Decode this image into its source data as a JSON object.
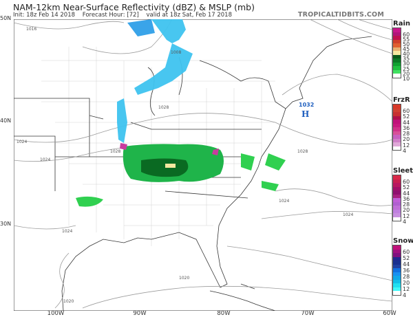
{
  "header": {
    "title": "NAM-12km Near-Surface Reflectivity (dBZ) & MSLP (mb)",
    "init": "Init: 18z Feb 14 2018",
    "forecast_hour": "Forecast Hour: [72]",
    "valid": "valid at 18z Sat, Feb 17 2018",
    "brand": "TROPICALTIDBITS.COM"
  },
  "axes": {
    "lat_labels": [
      "50N",
      "40N",
      "30N"
    ],
    "lon_labels": [
      "100W",
      "90W",
      "80W",
      "70W",
      "60W"
    ]
  },
  "isobars": {
    "labels": [
      "1016",
      "1008",
      "1028",
      "1024",
      "1024",
      "1028",
      "1028",
      "1024",
      "1024",
      "1024",
      "1020",
      "1020"
    ],
    "high_center": {
      "value": "1032",
      "symbol": "H",
      "color": "#1f5fbf"
    }
  },
  "legends": [
    {
      "title": "Rain",
      "labels": [
        "60",
        "55",
        "50",
        "45",
        "40",
        "35",
        "30",
        "25",
        "20",
        "10"
      ],
      "colors": [
        "#c8168a",
        "#b0157a",
        "#c01050",
        "#d0402a",
        "#e06030",
        "#e8b070",
        "#f5e8a0",
        "#0a5a1a",
        "#0b7a25",
        "#10a030",
        "#20c040",
        "#40e060",
        "#ffffff"
      ]
    },
    {
      "title": "FrzR",
      "labels": [
        "60",
        "52",
        "44",
        "36",
        "28",
        "20",
        "12",
        "4"
      ],
      "colors": [
        "#d83828",
        "#d04030",
        "#c83030",
        "#b01048",
        "#c0107a",
        "#c81880",
        "#d0308a",
        "#d85098",
        "#c860c0",
        "#d080c8",
        "#e0a8d8",
        "#ffffff"
      ]
    },
    {
      "title": "Sleet",
      "labels": [
        "60",
        "52",
        "44",
        "36",
        "28",
        "20",
        "12",
        "4"
      ],
      "colors": [
        "#d82848",
        "#c82050",
        "#b81860",
        "#a01068",
        "#901070",
        "#a82080",
        "#c060d8",
        "#b060d0",
        "#c070d8",
        "#c080e0",
        "#c890e0",
        "#ffffff"
      ]
    },
    {
      "title": "Snow",
      "labels": [
        "60",
        "52",
        "44",
        "36",
        "28",
        "20",
        "12",
        "4"
      ],
      "colors": [
        "#c0107a",
        "#a01080",
        "#801080",
        "#202890",
        "#183090",
        "#2040a0",
        "#1070e0",
        "#1890f0",
        "#10a8e8",
        "#10c0e8",
        "#20e0f0",
        "#40f8f8",
        "#ffffff"
      ]
    }
  ]
}
